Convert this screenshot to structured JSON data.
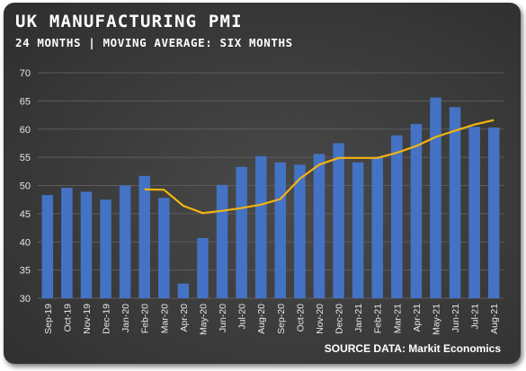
{
  "title": "UK MANUFACTURING PMI",
  "subtitle": "24 MONTHS | MOVING AVERAGE: SIX MONTHS",
  "source": "SOURCE DATA: Markit Economics",
  "colors": {
    "bar": "#4472c4",
    "line": "#f2b411",
    "grid": "#5c5c5c",
    "text": "#e6e6e6"
  },
  "chart_data": {
    "type": "bar",
    "categories": [
      "Sep-19",
      "Oct-19",
      "Nov-19",
      "Dec-19",
      "Jan-20",
      "Feb-20",
      "Mar-20",
      "Apr-20",
      "May-20",
      "Jun-20",
      "Jul-20",
      "Aug-20",
      "Sep-20",
      "Oct-20",
      "Nov-20",
      "Dec-20",
      "Jan-21",
      "Feb-21",
      "Mar-21",
      "Apr-21",
      "May-21",
      "Jun-21",
      "Jul-21",
      "Aug-21"
    ],
    "series": [
      {
        "type": "bar",
        "values": [
          48.3,
          49.6,
          48.9,
          47.5,
          50.0,
          51.7,
          47.8,
          32.6,
          40.7,
          50.1,
          53.3,
          55.2,
          54.1,
          53.7,
          55.6,
          57.5,
          54.1,
          55.1,
          58.9,
          60.9,
          65.6,
          63.9,
          60.4,
          60.3
        ]
      },
      {
        "type": "line",
        "values": [
          null,
          null,
          null,
          null,
          null,
          49.3,
          49.25,
          46.4,
          45.1,
          45.5,
          46.0,
          46.6,
          47.6,
          51.2,
          53.7,
          54.9,
          54.9,
          54.9,
          55.8,
          57.0,
          58.6,
          59.7,
          60.8,
          61.6
        ]
      }
    ],
    "ylim": [
      30,
      70
    ],
    "yticks": [
      30,
      35,
      40,
      45,
      50,
      55,
      60,
      65,
      70
    ],
    "grid": true
  }
}
